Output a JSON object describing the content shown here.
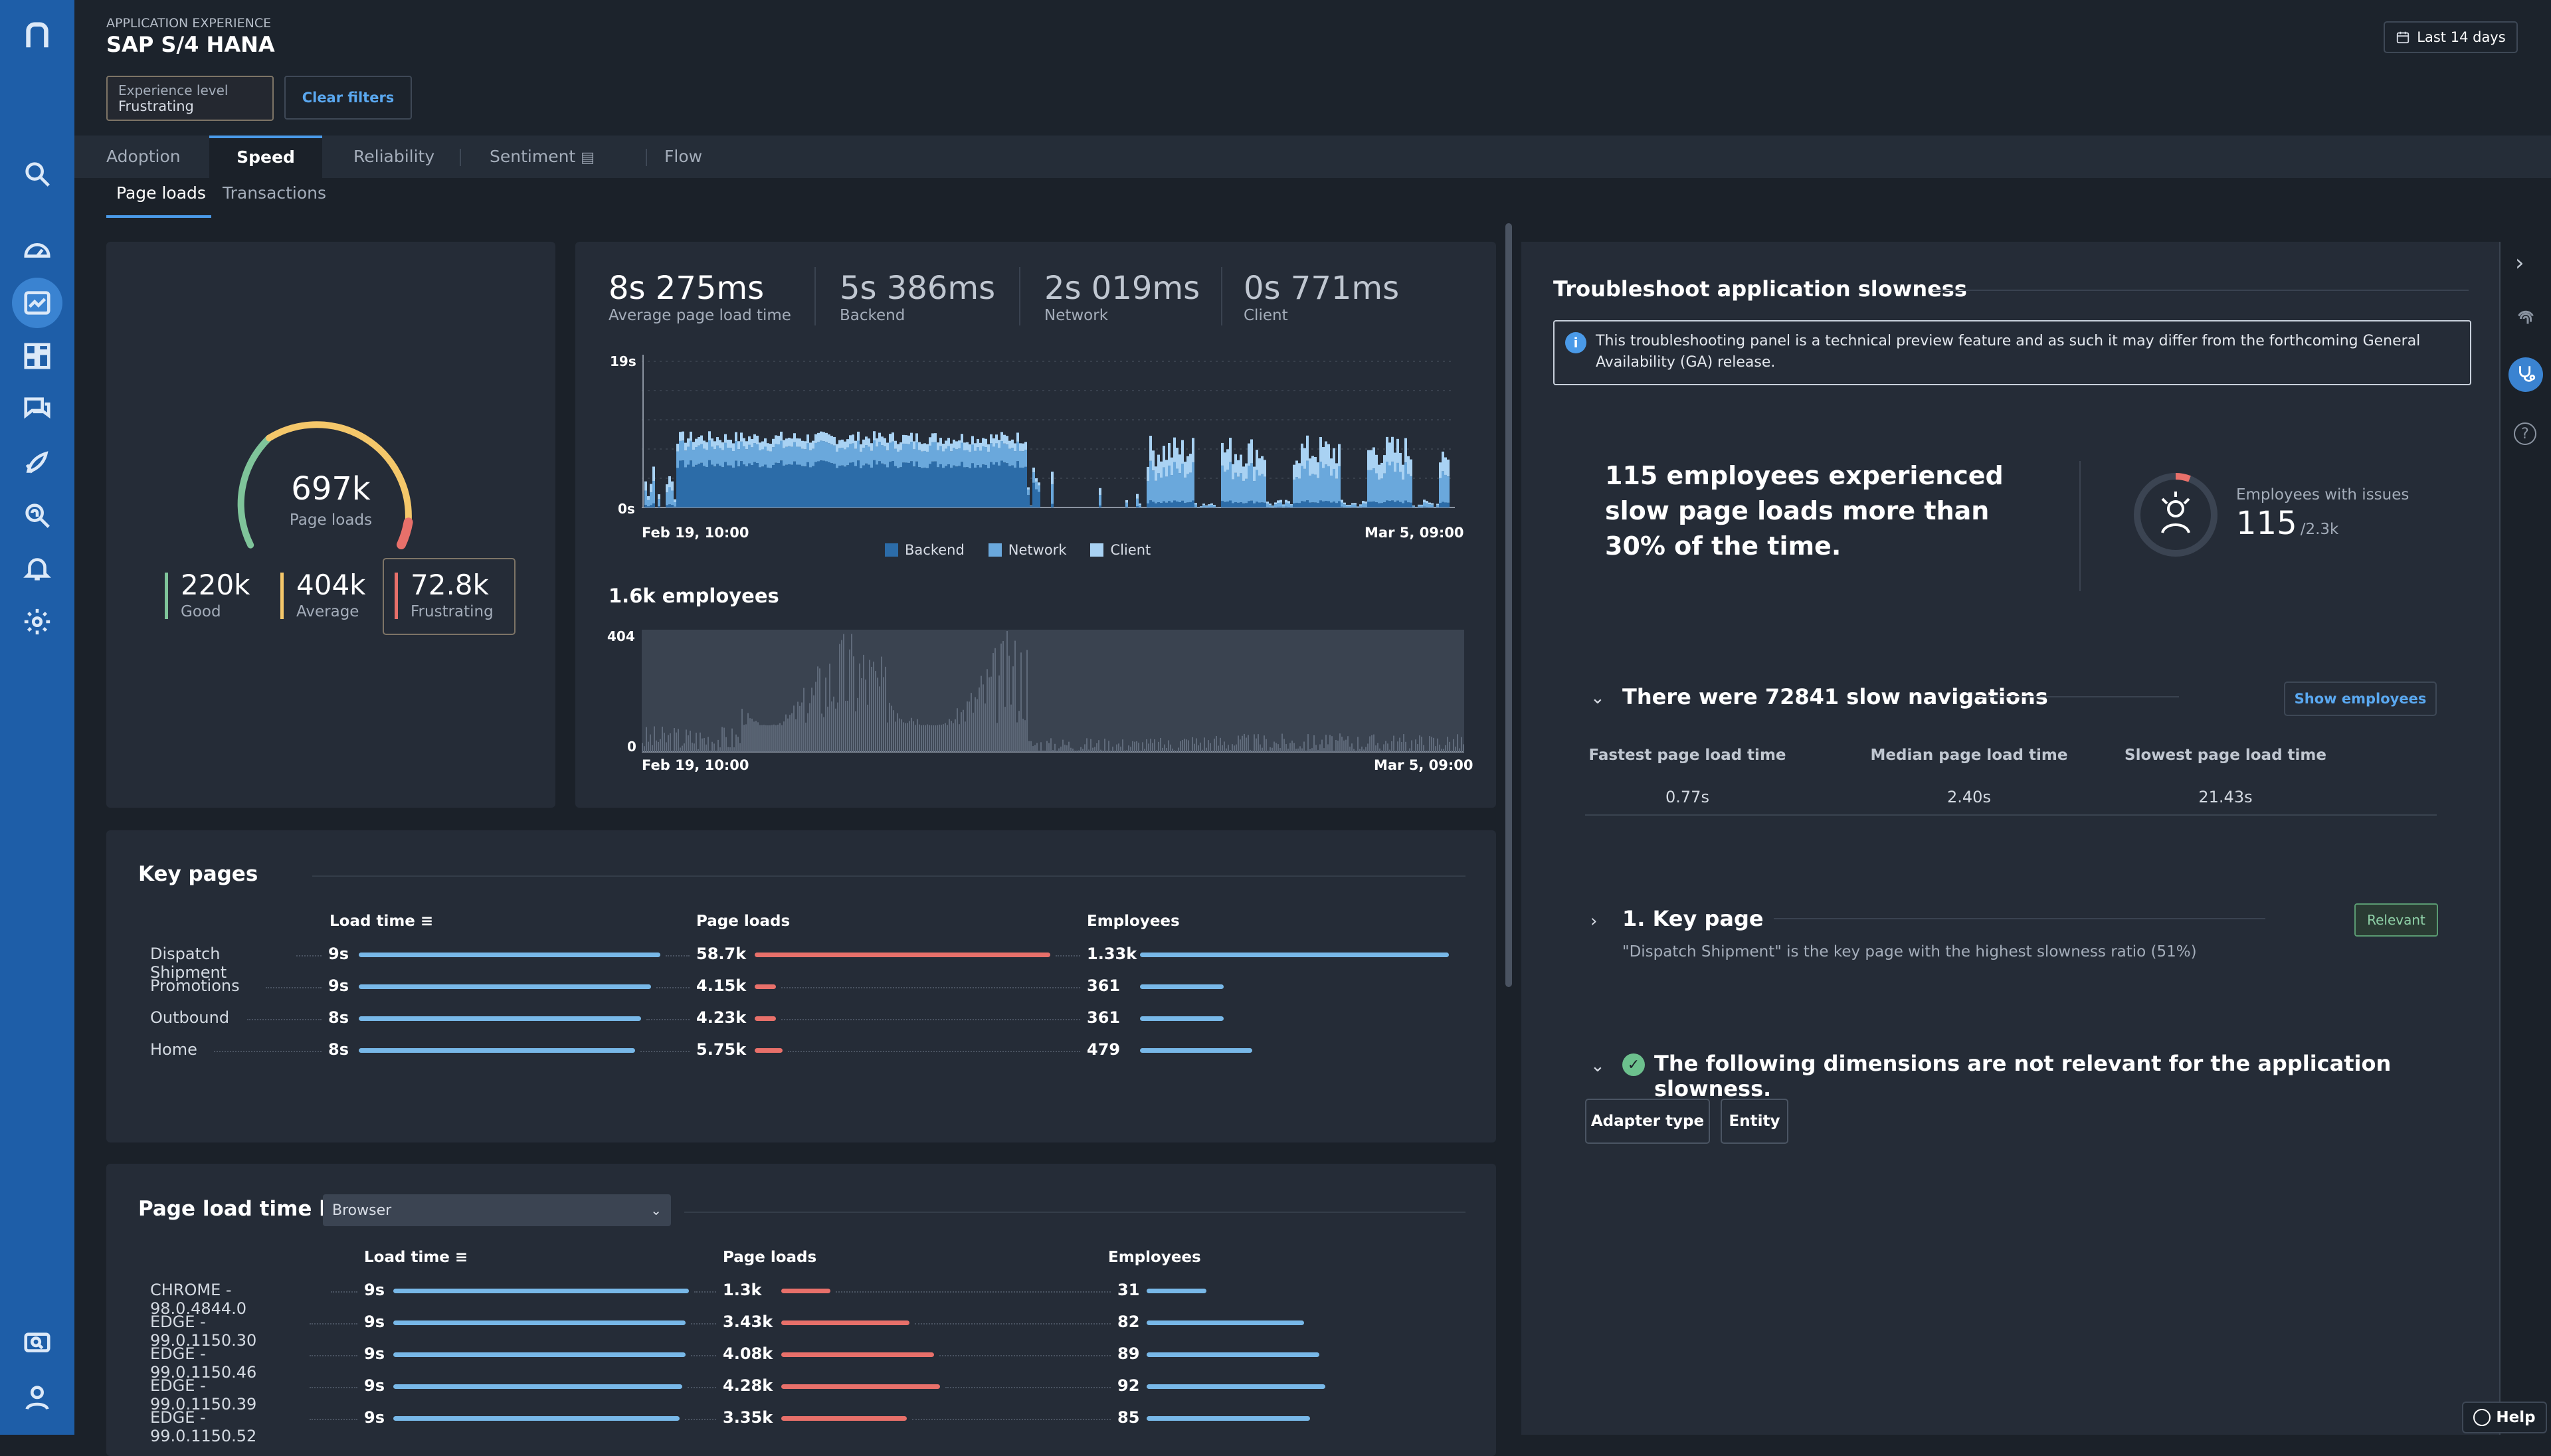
{
  "header": {
    "overline": "APPLICATION EXPERIENCE",
    "title": "SAP S/4 HANA",
    "timeframe": "Last 14 days",
    "filter_label": "Experience level",
    "filter_value": "Frustrating",
    "clear_filters": "Clear filters"
  },
  "tabs": [
    "Adoption",
    "Speed",
    "Reliability",
    "Sentiment",
    "Flow"
  ],
  "subtabs": [
    "Page loads",
    "Transactions"
  ],
  "gauge": {
    "value": "697k",
    "label": "Page loads",
    "good": {
      "value": "220k",
      "label": "Good"
    },
    "average": {
      "value": "404k",
      "label": "Average"
    },
    "frustrating": {
      "value": "72.8k",
      "label": "Frustrating"
    },
    "colors": {
      "good": "#7fc49a",
      "average": "#f4c76a",
      "frustrating": "#e8706a"
    }
  },
  "timings": [
    {
      "value": "8s 275ms",
      "label": "Average page load time"
    },
    {
      "value": "5s 386ms",
      "label": "Backend"
    },
    {
      "value": "2s 019ms",
      "label": "Network"
    },
    {
      "value": "0s 771ms",
      "label": "Client"
    }
  ],
  "chart_data": [
    {
      "type": "area",
      "ylim": [
        "0s",
        "19s"
      ],
      "ytick_max": "19s",
      "ytick_min": "0s",
      "x_start": "Feb 19, 10:00",
      "x_end": "Mar 5, 09:00",
      "series": [
        {
          "name": "Backend",
          "color": "#2c6ca8"
        },
        {
          "name": "Network",
          "color": "#6aa8dc"
        },
        {
          "name": "Client",
          "color": "#a9d2f3"
        }
      ]
    },
    {
      "type": "bar",
      "title": "1.6k employees",
      "ytick_max": "404",
      "ytick_min": "0",
      "x_start": "Feb 19, 10:00",
      "x_end": "Mar 5, 09:00"
    }
  ],
  "key_pages": {
    "title": "Key pages",
    "col_load": "Load time",
    "col_loads": "Page loads",
    "col_emp": "Employees",
    "rows": [
      {
        "name": "Dispatch Shipment",
        "load": "9s",
        "loads": "58.7k",
        "emp": "1.33k",
        "lf": 0.95,
        "pf": 0.96,
        "ef": 0.96
      },
      {
        "name": "Promotions",
        "load": "9s",
        "loads": "4.15k",
        "emp": "361",
        "lf": 0.92,
        "pf": 0.07,
        "ef": 0.26
      },
      {
        "name": "Outbound",
        "load": "8s",
        "loads": "4.23k",
        "emp": "361",
        "lf": 0.89,
        "pf": 0.07,
        "ef": 0.26
      },
      {
        "name": "Home",
        "load": "8s",
        "loads": "5.75k",
        "emp": "479",
        "lf": 0.87,
        "pf": 0.09,
        "ef": 0.35
      }
    ]
  },
  "browser": {
    "title": "Page load time by",
    "select": "Browser",
    "col_load": "Load time",
    "col_loads": "Page loads",
    "col_emp": "Employees",
    "rows": [
      {
        "name": "CHROME - 98.0.4844.0",
        "load": "9s",
        "loads": "1.3k",
        "emp": "31",
        "lf": 0.95,
        "pf": 0.16,
        "ef": 0.2
      },
      {
        "name": "EDGE - 99.0.1150.30",
        "load": "9s",
        "loads": "3.43k",
        "emp": "82",
        "lf": 0.94,
        "pf": 0.42,
        "ef": 0.53
      },
      {
        "name": "EDGE - 99.0.1150.46",
        "load": "9s",
        "loads": "4.08k",
        "emp": "89",
        "lf": 0.94,
        "pf": 0.5,
        "ef": 0.58
      },
      {
        "name": "EDGE - 99.0.1150.39",
        "load": "9s",
        "loads": "4.28k",
        "emp": "92",
        "lf": 0.93,
        "pf": 0.52,
        "ef": 0.6
      },
      {
        "name": "EDGE - 99.0.1150.52",
        "load": "9s",
        "loads": "3.35k",
        "emp": "85",
        "lf": 0.92,
        "pf": 0.41,
        "ef": 0.55
      }
    ]
  },
  "panel": {
    "title": "Troubleshoot application slowness",
    "notice": "This troubleshooting panel is a technical preview feature and as such it may differ from the forthcoming General Availability (GA) release.",
    "headline": "115 employees experienced slow page loads more than 30% of the time.",
    "emp_label": "Employees with issues",
    "emp_value": "115",
    "emp_total": "/2.3k",
    "nav_title": "There were 72841 slow navigations",
    "show_employees": "Show employees",
    "stats": [
      {
        "label": "Fastest page load time",
        "value": "0.77s"
      },
      {
        "label": "Median page load time",
        "value": "2.40s"
      },
      {
        "label": "Slowest page load time",
        "value": "21.43s"
      }
    ],
    "key_page_title": "1. Key page",
    "relevant": "Relevant",
    "key_page_text": "\"Dispatch Shipment\" is the key page with the highest slowness ratio (51%)",
    "dims_title": "The following dimensions are not relevant for the application slowness.",
    "dims": [
      "Adapter type",
      "Entity"
    ]
  },
  "help": "Help"
}
